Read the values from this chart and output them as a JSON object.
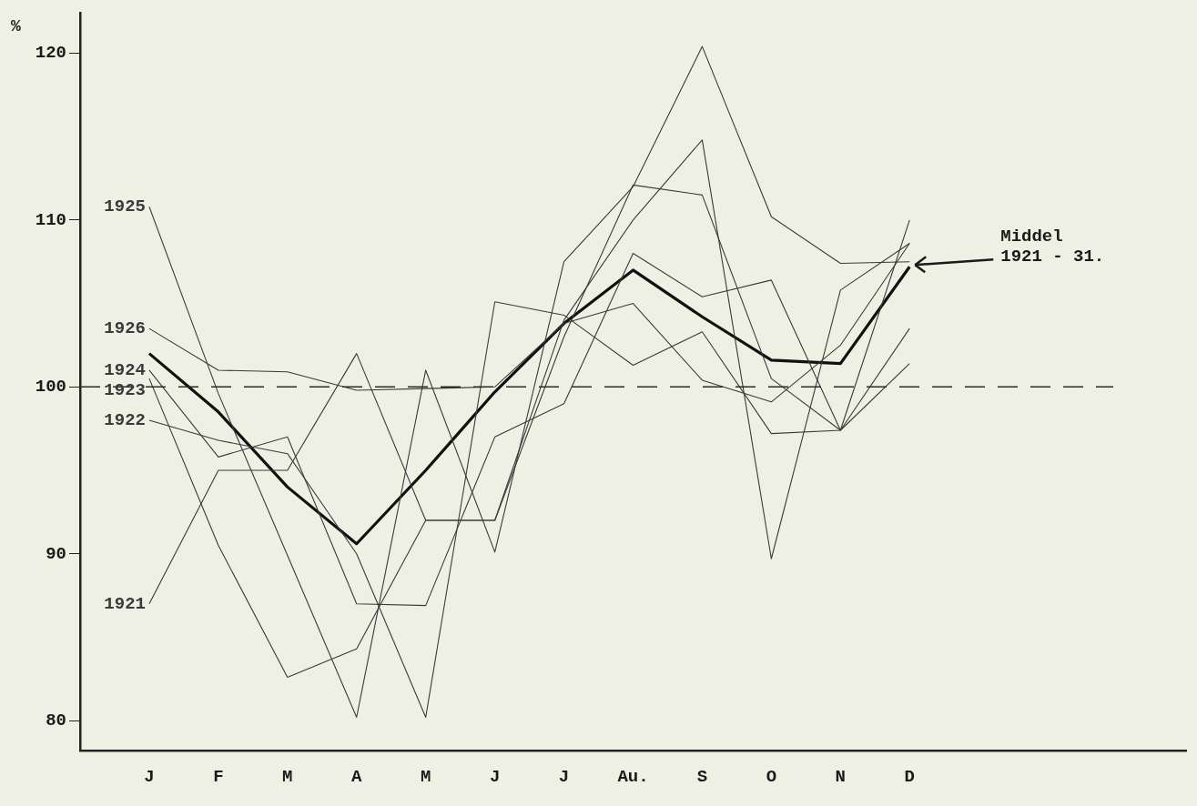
{
  "chart_data": {
    "type": "line",
    "ylabel": "%",
    "categories": [
      null,
      "J",
      "F",
      "M",
      "A",
      "M",
      "J",
      "J",
      "Au.",
      "S",
      "O",
      "N",
      "D",
      null,
      null,
      null,
      null
    ],
    "ylim": [
      78.2,
      122.4
    ],
    "yticks": [
      80,
      90,
      100,
      110,
      120
    ],
    "grid": false,
    "legend": false,
    "marker": "none",
    "line_style": "solid",
    "series": [
      {
        "name": "1925",
        "color": "#3a3a3a",
        "values": [
          null,
          110.8,
          99.6,
          89.9,
          80.2,
          101,
          90.1,
          107.5,
          112,
          120.4,
          110.2,
          107.4,
          107.5,
          null,
          null,
          null,
          null
        ]
      },
      {
        "name": "1926",
        "color": "#3a3a3a",
        "values": [
          null,
          103.5,
          101,
          100.9,
          99.8,
          99.9,
          100,
          103.8,
          105,
          100.4,
          99.1,
          102.5,
          108.6,
          null,
          null,
          null,
          null
        ]
      },
      {
        "name": "1924",
        "color": "#3a3a3a",
        "values": [
          null,
          101,
          95.8,
          97,
          87,
          86.9,
          97,
          99,
          108,
          105.4,
          106.4,
          97.4,
          110,
          null,
          null,
          null,
          null
        ]
      },
      {
        "name": "1923",
        "color": "#3a3a3a",
        "values": [
          null,
          100.5,
          90.5,
          82.6,
          84.3,
          92,
          92,
          103,
          112.1,
          111.5,
          100.5,
          97.4,
          103.5,
          null,
          null,
          null,
          null
        ]
      },
      {
        "name": "1922",
        "color": "#3a3a3a",
        "values": [
          null,
          98,
          96.8,
          96,
          90,
          80.2,
          105.1,
          104.3,
          101.3,
          103.3,
          97.2,
          97.4,
          101.4,
          null,
          null,
          null,
          null
        ]
      },
      {
        "name": "1921",
        "color": "#3a3a3a",
        "values": [
          null,
          87,
          95,
          95,
          102,
          92,
          92,
          104,
          110,
          114.8,
          89.7,
          105.8,
          108.6,
          null,
          null,
          null,
          null
        ]
      },
      {
        "color": "#111111",
        "values": [
          null,
          102,
          98.5,
          94,
          90.6,
          95,
          99.7,
          103.8,
          107,
          104.2,
          101.6,
          101.4,
          107.2,
          null,
          null,
          null,
          null
        ]
      }
    ],
    "ref_lines": [
      {
        "axis": "y",
        "value": 100,
        "color": "#2a2a2a",
        "line_style": "dashed"
      }
    ],
    "annotations": [
      {
        "text": "Middel\n1921 - 31.",
        "x": "D",
        "y": 107.2
      }
    ]
  }
}
